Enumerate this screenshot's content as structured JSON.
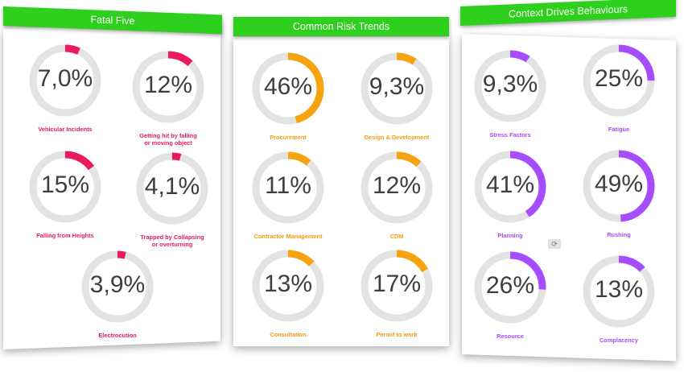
{
  "colors": {
    "red": "#ea1a5c",
    "orange": "#f5a30f",
    "purple": "#a64dff",
    "track": "#e3e3e3",
    "header": "#2fcf1d"
  },
  "panels": [
    {
      "title": "Fatal Five",
      "color": "red",
      "gauges": [
        {
          "value": "7,0%",
          "pct": 7.0,
          "label": "Vehicular Incidents"
        },
        {
          "value": "12%",
          "pct": 12,
          "label": "Getting hit by falling\nor moving object"
        },
        {
          "value": "15%",
          "pct": 15,
          "label": "Falling from Heights"
        },
        {
          "value": "4,1%",
          "pct": 4.1,
          "label": "Trapped by Collapsing\nor overturning"
        },
        {
          "value": "3,9%",
          "pct": 3.9,
          "label": "Electrocution"
        }
      ]
    },
    {
      "title": "Common Risk Trends",
      "color": "orange",
      "gauges": [
        {
          "value": "46%",
          "pct": 46,
          "label": "Procurement"
        },
        {
          "value": "9,3%",
          "pct": 9.3,
          "label": "Design & Development"
        },
        {
          "value": "11%",
          "pct": 11,
          "label": "Contractor Management"
        },
        {
          "value": "12%",
          "pct": 12,
          "label": "CDM"
        },
        {
          "value": "13%",
          "pct": 13,
          "label": "Consultation"
        },
        {
          "value": "17%",
          "pct": 17,
          "label": "Permit to work"
        }
      ]
    },
    {
      "title": "Context Drives Behaviours",
      "color": "purple",
      "gauges": [
        {
          "value": "9,3%",
          "pct": 9.3,
          "label": "Stress Factors"
        },
        {
          "value": "25%",
          "pct": 25,
          "label": "Fatigue"
        },
        {
          "value": "41%",
          "pct": 41,
          "label": "Planning"
        },
        {
          "value": "49%",
          "pct": 49,
          "label": "Rushing"
        },
        {
          "value": "26%",
          "pct": 26,
          "label": "Resource"
        },
        {
          "value": "13%",
          "pct": 13,
          "label": "Complacency"
        }
      ]
    }
  ],
  "center_icon": "refresh-icon"
}
